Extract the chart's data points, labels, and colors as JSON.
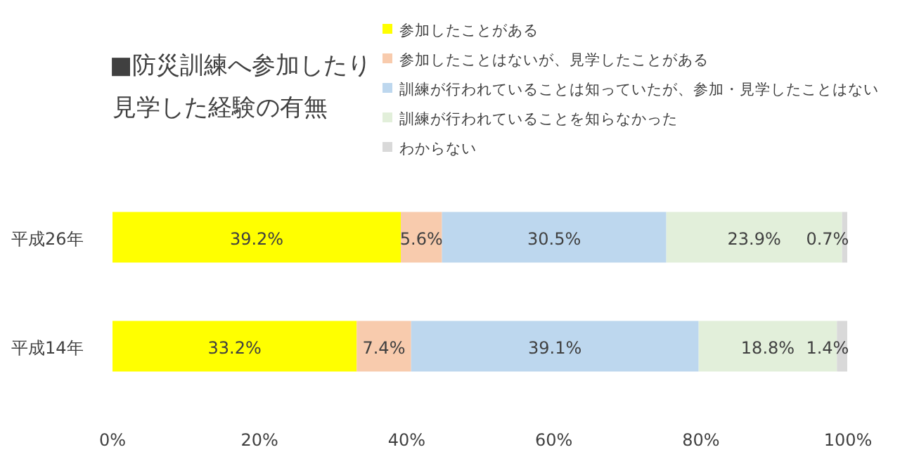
{
  "chart_data": {
    "type": "bar",
    "orientation": "horizontal",
    "stacked": true,
    "title": "■防災訓練へ参加したり見学した経験の有無",
    "categories": [
      "平成26年",
      "平成14年"
    ],
    "series": [
      {
        "name": "参加したことがある",
        "color": "#ffff00",
        "values": [
          39.2,
          33.2
        ],
        "value_labels": [
          "39.2%",
          "33.2%"
        ]
      },
      {
        "name": "参加したことはないが、見学したことがある",
        "color": "#f8cbad",
        "values": [
          5.6,
          7.4
        ],
        "value_labels": [
          "5.6%",
          "7.4%"
        ]
      },
      {
        "name": "訓練が行われていることは知っていたが、参加・見学したことはない",
        "color": "#bdd7ee",
        "values": [
          30.5,
          39.1
        ],
        "value_labels": [
          "30.5%",
          "39.1%"
        ]
      },
      {
        "name": "訓練が行われていることを知らなかった",
        "color": "#e2efda",
        "values": [
          23.9,
          18.8
        ],
        "value_labels": [
          "23.9%",
          "18.8%"
        ]
      },
      {
        "name": "わからない",
        "color": "#d9d9d9",
        "values": [
          0.7,
          1.4
        ],
        "value_labels": [
          "0.7%",
          "1.4%"
        ]
      }
    ],
    "xlim": [
      0,
      100
    ],
    "xticks": [
      {
        "value": 0,
        "label": "0%"
      },
      {
        "value": 20,
        "label": "20%"
      },
      {
        "value": 40,
        "label": "40%"
      },
      {
        "value": 60,
        "label": "60%"
      },
      {
        "value": 80,
        "label": "80%"
      },
      {
        "value": 100,
        "label": "100%"
      }
    ],
    "legend": "top right"
  }
}
